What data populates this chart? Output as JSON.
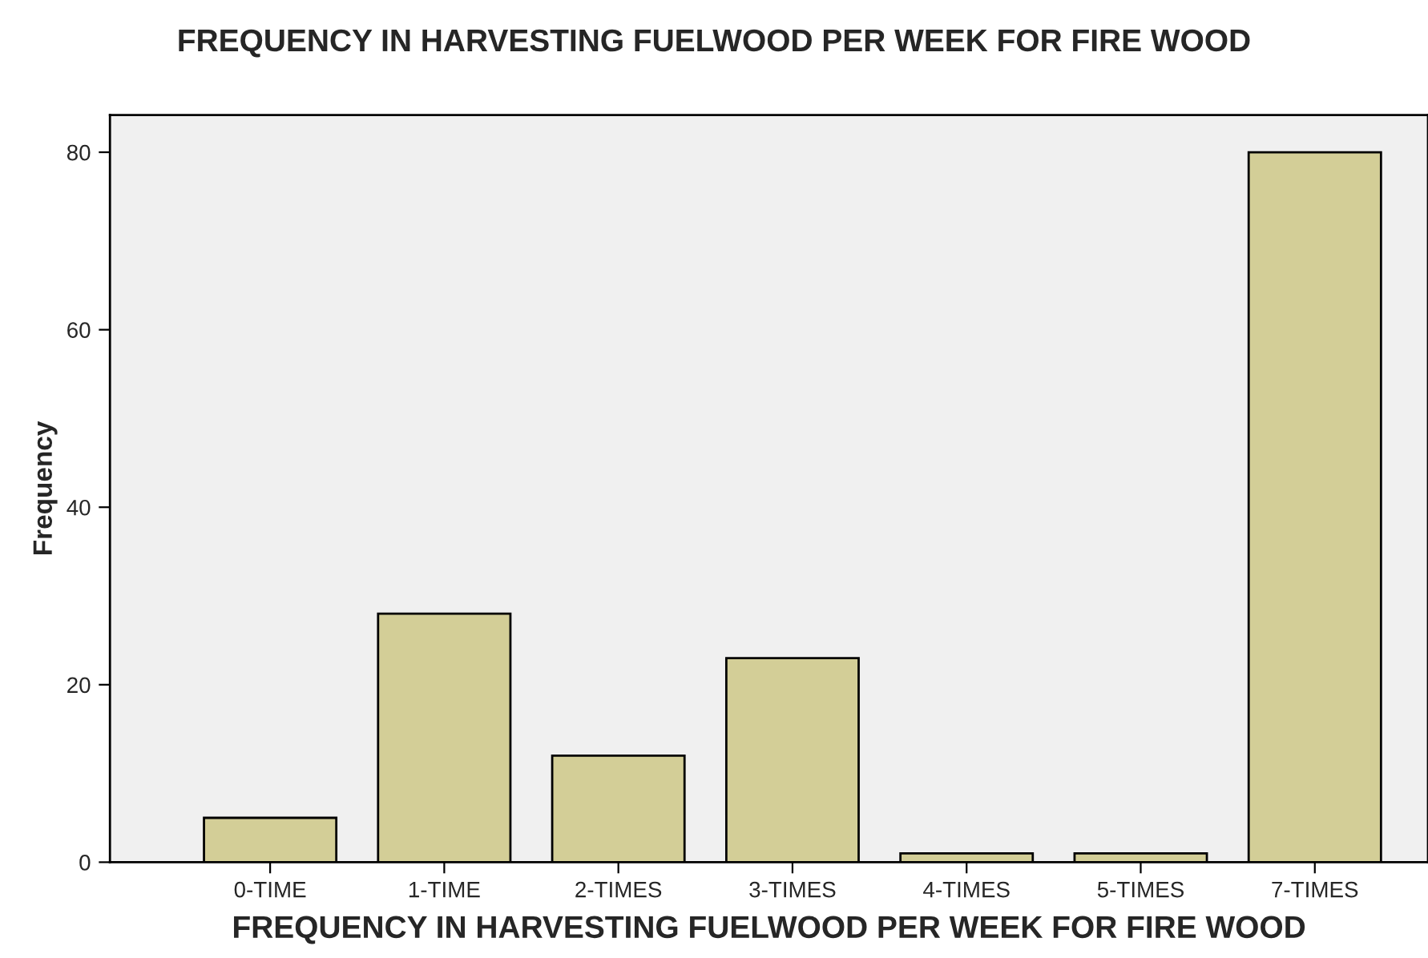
{
  "chart_data": {
    "type": "bar",
    "title": "FREQUENCY IN HARVESTING FUELWOOD PER WEEK FOR FIRE WOOD",
    "xlabel": "FREQUENCY IN HARVESTING FUELWOOD PER WEEK FOR FIRE WOOD",
    "ylabel": "Frequency",
    "categories": [
      "0-TIME",
      "1-TIME",
      "2-TIMES",
      "3-TIMES",
      "4-TIMES",
      "5-TIMES",
      "7-TIMES"
    ],
    "values": [
      5,
      28,
      12,
      23,
      1,
      1,
      80
    ],
    "color": "#d3ce97",
    "ylim": [
      0,
      84.2
    ],
    "yticks": [
      0,
      20,
      40,
      60,
      80
    ],
    "grid": false,
    "legend": false
  }
}
